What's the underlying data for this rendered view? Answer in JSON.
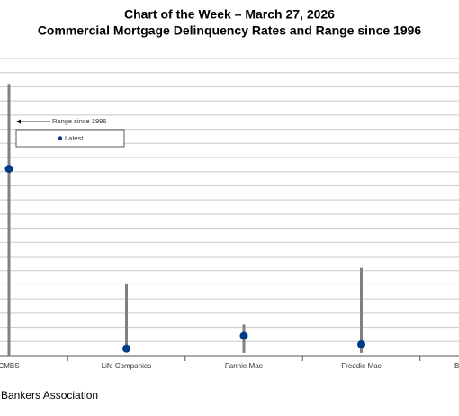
{
  "chart_data": {
    "type": "range",
    "title": "Chart of the Week – March 27, 2026",
    "subtitle": "Commercial Mortgage Delinquency Rates and Range since 1996",
    "categories": [
      "CMBS",
      "Life Companies",
      "Fannie Mae",
      "Freddie Mac",
      "Ba"
    ],
    "series": [
      {
        "name": "Range since 1996",
        "color": "#808080",
        "low": [
          0,
          0.3,
          0.2,
          0.2,
          null
        ],
        "high": [
          19.2,
          5.1,
          2.2,
          6.2,
          null
        ]
      },
      {
        "name": "Latest",
        "color": "#003b87",
        "values": [
          13.2,
          0.5,
          1.4,
          0.8,
          null
        ]
      }
    ],
    "ylim": [
      0,
      21
    ],
    "yticks": [
      0,
      1,
      2,
      3,
      4,
      5,
      6,
      7,
      8,
      9,
      10,
      11,
      12,
      13,
      14,
      15,
      16,
      17,
      18,
      19,
      20,
      21
    ],
    "grid": true,
    "source": "Bankers Association"
  }
}
